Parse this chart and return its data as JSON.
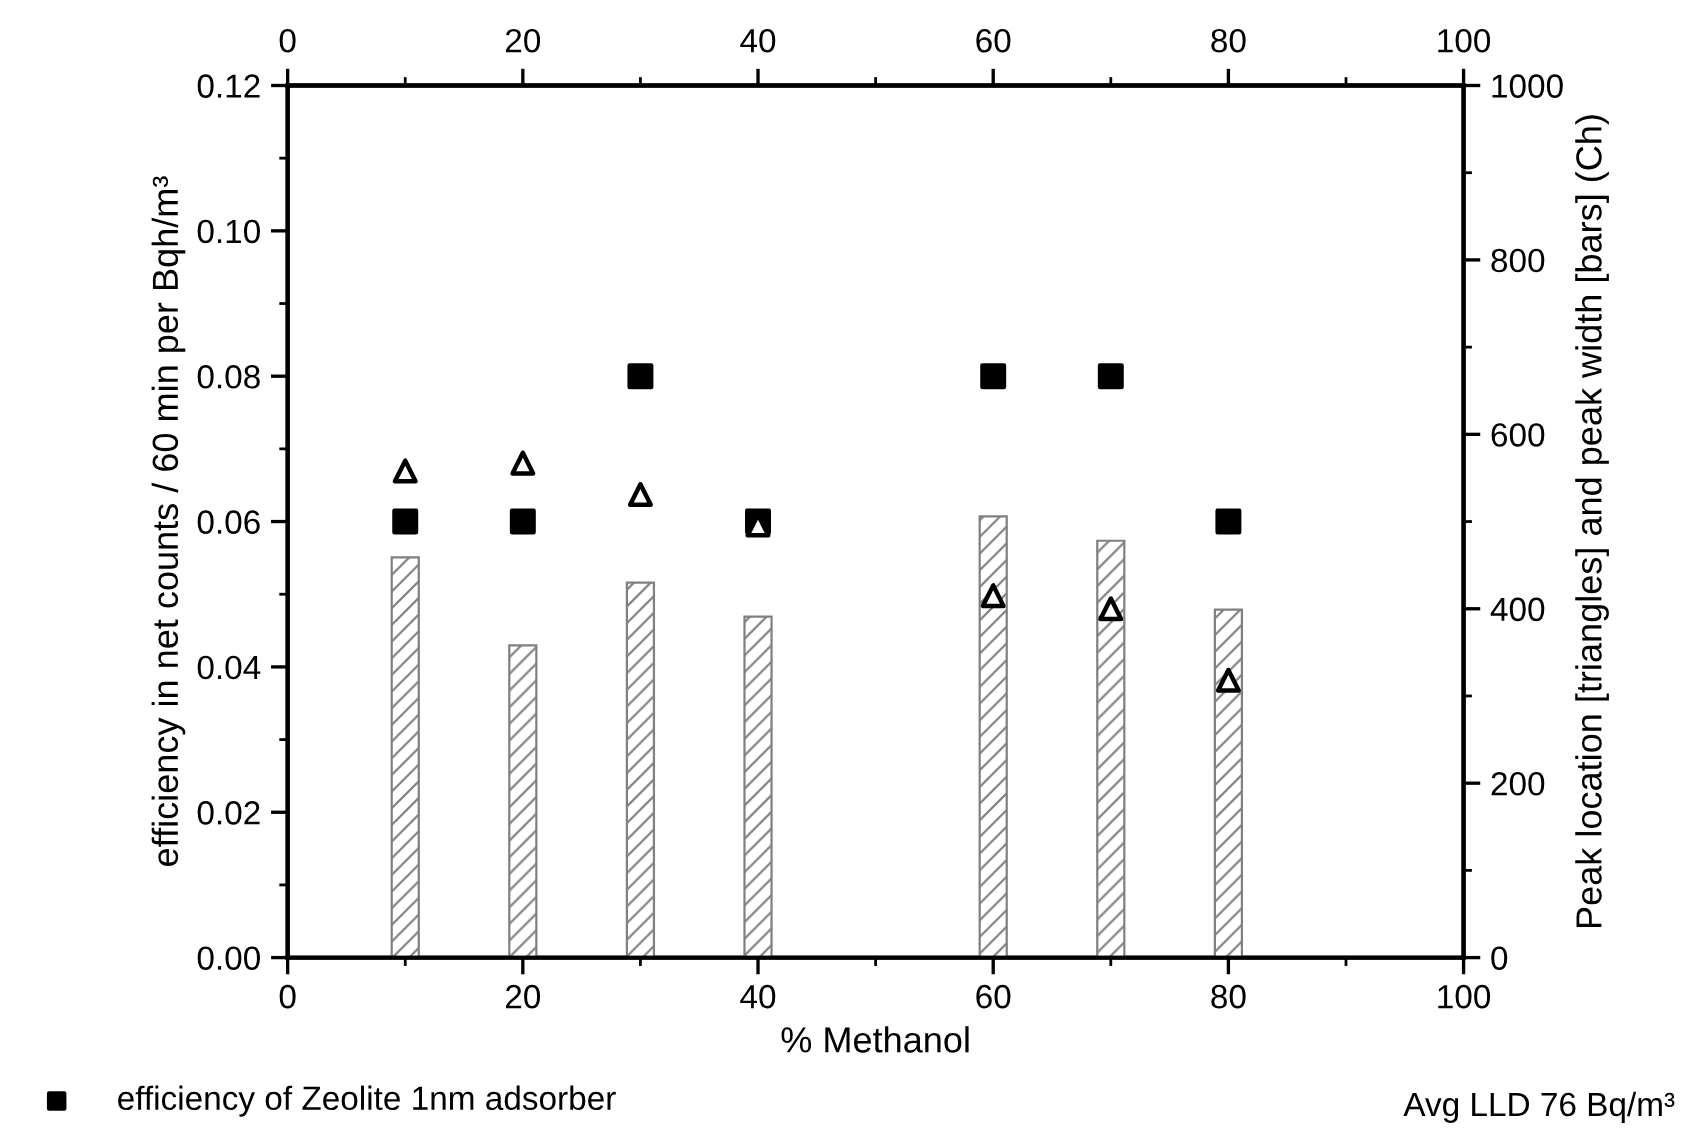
{
  "chart_data": {
    "type": "scatter",
    "xlabel": "% Methanol",
    "ylabel": "efficiency in net counts / 60 min per Bqh/m³",
    "y2label": "Peak location [triangles] and peak width [bars] (Ch)",
    "x": [
      10,
      20,
      30,
      40,
      60,
      70,
      80
    ],
    "series": [
      {
        "type": "bar",
        "axis": "y2",
        "color": "#808080",
        "values": [
          459,
          358,
          430,
          391,
          506,
          478,
          399
        ]
      },
      {
        "name": "efficiency of Zeolite 1nm adsorber",
        "color": "#000000",
        "marker": "square",
        "values": [
          0.06,
          0.06,
          0.08,
          0.06,
          0.08,
          0.08,
          0.06
        ]
      },
      {
        "type": "scatter",
        "axis": "y2",
        "color": "#000000",
        "marker": "triangle",
        "values": [
          558,
          567,
          531,
          496,
          415,
          400,
          318
        ]
      }
    ],
    "xlim": [
      0,
      100
    ],
    "xticks": [
      0,
      20,
      40,
      60,
      80,
      100
    ],
    "x2lim": [
      0,
      100
    ],
    "x2ticks": [
      0,
      20,
      40,
      60,
      80,
      100
    ],
    "ylim": [
      0,
      0.12
    ],
    "yticks": [
      {
        "value": 0,
        "label": "0.00"
      },
      {
        "value": 0.02,
        "label": "0.02"
      },
      {
        "value": 0.04,
        "label": "0.04"
      },
      {
        "value": 0.06,
        "label": "0.06"
      },
      {
        "value": 0.08,
        "label": "0.08"
      },
      {
        "value": 0.1,
        "label": "0.10"
      },
      {
        "value": 0.12,
        "label": "0.12"
      }
    ],
    "y2lim": [
      0,
      1000
    ],
    "y2ticks": [
      0,
      200,
      400,
      600,
      800,
      1000
    ],
    "grid": false,
    "legend": "bottom left",
    "annotations": [
      "Avg LLD 76 Bq/m³"
    ]
  }
}
